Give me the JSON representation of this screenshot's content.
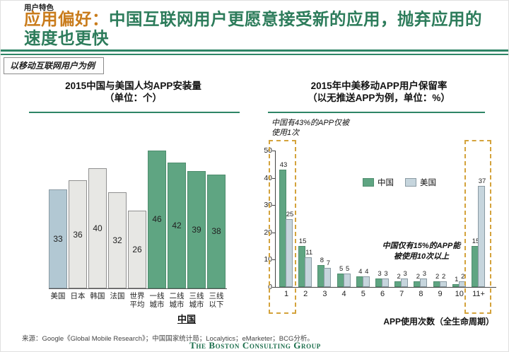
{
  "header": {
    "eyebrow": "用户特色",
    "title_highlight": "应用偏好：",
    "title_rest_line1": "中国互联网用户更愿意接受新的应用，抛弃应用的",
    "title_line2": "速度也更快",
    "tag": "以移动互联网用户为例"
  },
  "colors": {
    "title_orange": "#C97C1C",
    "title_green": "#2D7C5B",
    "rule_green": "#2E8566",
    "china_bar_green": "#5FA582",
    "us_bar_blue_left": "#B2C8D3",
    "us_bar_blue_right": "#C6D5DD",
    "gray_bar": "#E7E7E4",
    "dashed_highlight": "#D4A33C",
    "bcg_logo_green": "#1B6E4B"
  },
  "chart_data": [
    {
      "type": "bar",
      "title": "2015中国与美国人均APP安装量",
      "subtitle": "（单位：个）",
      "categories": [
        "美国",
        "日本",
        "韩国",
        "法国",
        "世界平均",
        "一线城市",
        "二线城市",
        "三线城市",
        "三线以下"
      ],
      "values": [
        33,
        36,
        40,
        32,
        26,
        46,
        42,
        39,
        38
      ],
      "bar_styles": [
        "us",
        "other",
        "other",
        "other",
        "other",
        "cn",
        "cn",
        "cn",
        "cn"
      ],
      "group_label": "中国",
      "ylim": [
        0,
        46
      ],
      "grid": false,
      "legend": false
    },
    {
      "type": "grouped-bar",
      "title": "2015年中美移动APP用户保留率",
      "subtitle": "（以无推送APP为例，单位：%）",
      "categories": [
        "1",
        "2",
        "3",
        "4",
        "5",
        "6",
        "7",
        "8",
        "9",
        "10",
        "11+"
      ],
      "series": [
        {
          "name": "中国",
          "values": [
            43,
            15,
            8,
            5,
            4,
            3,
            2,
            2,
            2,
            1,
            15
          ]
        },
        {
          "name": "美国",
          "values": [
            25,
            11,
            7,
            5,
            4,
            3,
            3,
            3,
            2,
            2,
            37
          ]
        }
      ],
      "yticks": [
        0,
        10,
        20,
        30,
        40,
        50
      ],
      "ylim": [
        0,
        50
      ],
      "xlabel": "APP使用次数（全生命周期）",
      "legend_position": "upper-center",
      "grid": false,
      "annotation_first": "中国有43%的APP仅被\n使用1次",
      "annotation_last": "中国仅有15%的APP能\n被使用10次以上",
      "highlighted_groups": [
        "1",
        "11+"
      ]
    }
  ],
  "footer": {
    "source": "来源：Google《Global Mobile Research》；中国国家统计局；Localytics；eMarketer；BCG分析。",
    "logo": "The Boston Consulting Group"
  }
}
